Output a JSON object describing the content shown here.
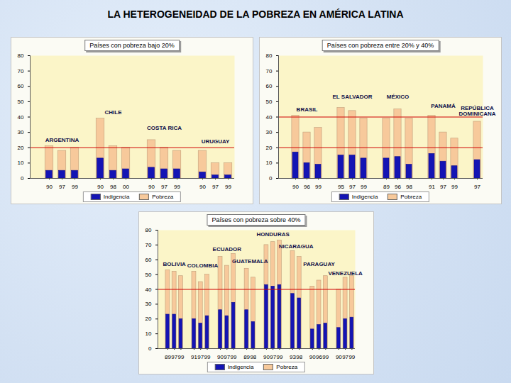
{
  "title": "LA HETEROGENEIDAD DE LA POBREZA EN AMÉRICA LATINA",
  "chart_data": [
    {
      "type": "bar",
      "title": "Países con pobreza bajo 20%",
      "categories": [
        "90",
        "97",
        "99",
        null,
        "90",
        "98",
        "00",
        null,
        "90",
        "97",
        "99",
        null,
        "90",
        "97",
        "99"
      ],
      "series": [
        {
          "name": "Indigencia",
          "color": "#1414b4",
          "values": [
            5,
            5,
            5,
            null,
            13,
            5,
            6,
            null,
            7,
            6,
            6,
            null,
            4,
            2,
            2
          ]
        },
        {
          "name": "Pobreza",
          "color": "#f7c99b",
          "values": [
            21,
            18,
            20,
            null,
            39,
            21,
            20,
            null,
            25,
            20,
            18,
            null,
            18,
            10,
            10
          ]
        }
      ],
      "annotations": [
        {
          "text": "ARGENTINA",
          "x": 1,
          "y": 25
        },
        {
          "text": "CHILE",
          "x": 5,
          "y": 43
        },
        {
          "text": "COSTA RICA",
          "x": 9,
          "y": 33
        },
        {
          "text": "URUGUAY",
          "x": 13,
          "y": 24
        }
      ],
      "reference_lines": [
        20
      ],
      "ylim": [
        0,
        80
      ],
      "yticks": [
        0,
        10,
        20,
        30,
        40,
        50,
        60,
        70,
        80
      ],
      "grid": false,
      "legend": "bottom"
    },
    {
      "type": "bar",
      "title": "Países con pobreza entre 20% y 40%",
      "categories": [
        "90",
        "96",
        "99",
        null,
        "95",
        "97",
        "99",
        null,
        "89",
        "96",
        "98",
        null,
        "91",
        "97",
        "99",
        null,
        "97"
      ],
      "series": [
        {
          "name": "Indigencia",
          "color": "#1414b4",
          "values": [
            17,
            10,
            9,
            null,
            15,
            15,
            13,
            null,
            13,
            14,
            9,
            null,
            16,
            11,
            8,
            null,
            12
          ]
        },
        {
          "name": "Pobreza",
          "color": "#f7c99b",
          "values": [
            41,
            30,
            33,
            null,
            46,
            44,
            39,
            null,
            39,
            45,
            39,
            null,
            41,
            30,
            26,
            null,
            37
          ]
        }
      ],
      "annotations": [
        {
          "text": "BRASIL",
          "x": 1,
          "y": 45
        },
        {
          "text": "EL SALVADOR",
          "x": 5,
          "y": 53
        },
        {
          "text": "MÉXICO",
          "x": 9,
          "y": 53
        },
        {
          "text": "PANAMÁ",
          "x": 13,
          "y": 47
        },
        {
          "text": "REPÚBLICA\nDOMINICANA",
          "x": 16,
          "y": 44
        }
      ],
      "reference_lines": [
        20,
        40
      ],
      "ylim": [
        0,
        80
      ],
      "yticks": [
        0,
        10,
        20,
        30,
        40,
        50,
        60,
        70,
        80
      ],
      "grid": false,
      "legend": "bottom"
    },
    {
      "type": "bar",
      "title": "Países con pobreza sobre 40%",
      "categories": [
        "89",
        "97",
        "99",
        null,
        "91",
        "97",
        "99",
        null,
        "90",
        "97",
        "99",
        null,
        "89",
        "98",
        null,
        "90",
        "97",
        "99",
        null,
        "93",
        "98",
        null,
        "90",
        "96",
        "99",
        null,
        "90",
        "97",
        "99"
      ],
      "series": [
        {
          "name": "Indigencia",
          "color": "#1414b4",
          "values": [
            23,
            23,
            20,
            null,
            20,
            17,
            22,
            null,
            26,
            22,
            31,
            null,
            26,
            18,
            null,
            43,
            42,
            43,
            null,
            37,
            34,
            null,
            13,
            16,
            17,
            null,
            14,
            20,
            21
          ]
        },
        {
          "name": "Pobreza",
          "color": "#f7c99b",
          "values": [
            53,
            52,
            49,
            null,
            52,
            45,
            50,
            null,
            62,
            56,
            64,
            null,
            54,
            48,
            null,
            70,
            72,
            73,
            null,
            66,
            62,
            null,
            42,
            46,
            49,
            null,
            40,
            48,
            49
          ]
        }
      ],
      "annotations": [
        {
          "text": "BOLIVIA",
          "x": 1,
          "y": 57
        },
        {
          "text": "COLOMBIA",
          "x": 5.3,
          "y": 56
        },
        {
          "text": "ECUADOR",
          "x": 9,
          "y": 67
        },
        {
          "text": "GUATEMALA",
          "x": 12.5,
          "y": 59
        },
        {
          "text": "HONDURAS",
          "x": 16,
          "y": 77
        },
        {
          "text": "NICARAGUA",
          "x": 19.5,
          "y": 69
        },
        {
          "text": "PARAGUAY",
          "x": 23,
          "y": 57
        },
        {
          "text": "VENEZUELA",
          "x": 27,
          "y": 51
        }
      ],
      "reference_lines": [
        40
      ],
      "ylim": [
        0,
        80
      ],
      "yticks": [
        0,
        10,
        20,
        30,
        40,
        50,
        60,
        70,
        80
      ],
      "grid": false,
      "legend": "bottom"
    }
  ]
}
